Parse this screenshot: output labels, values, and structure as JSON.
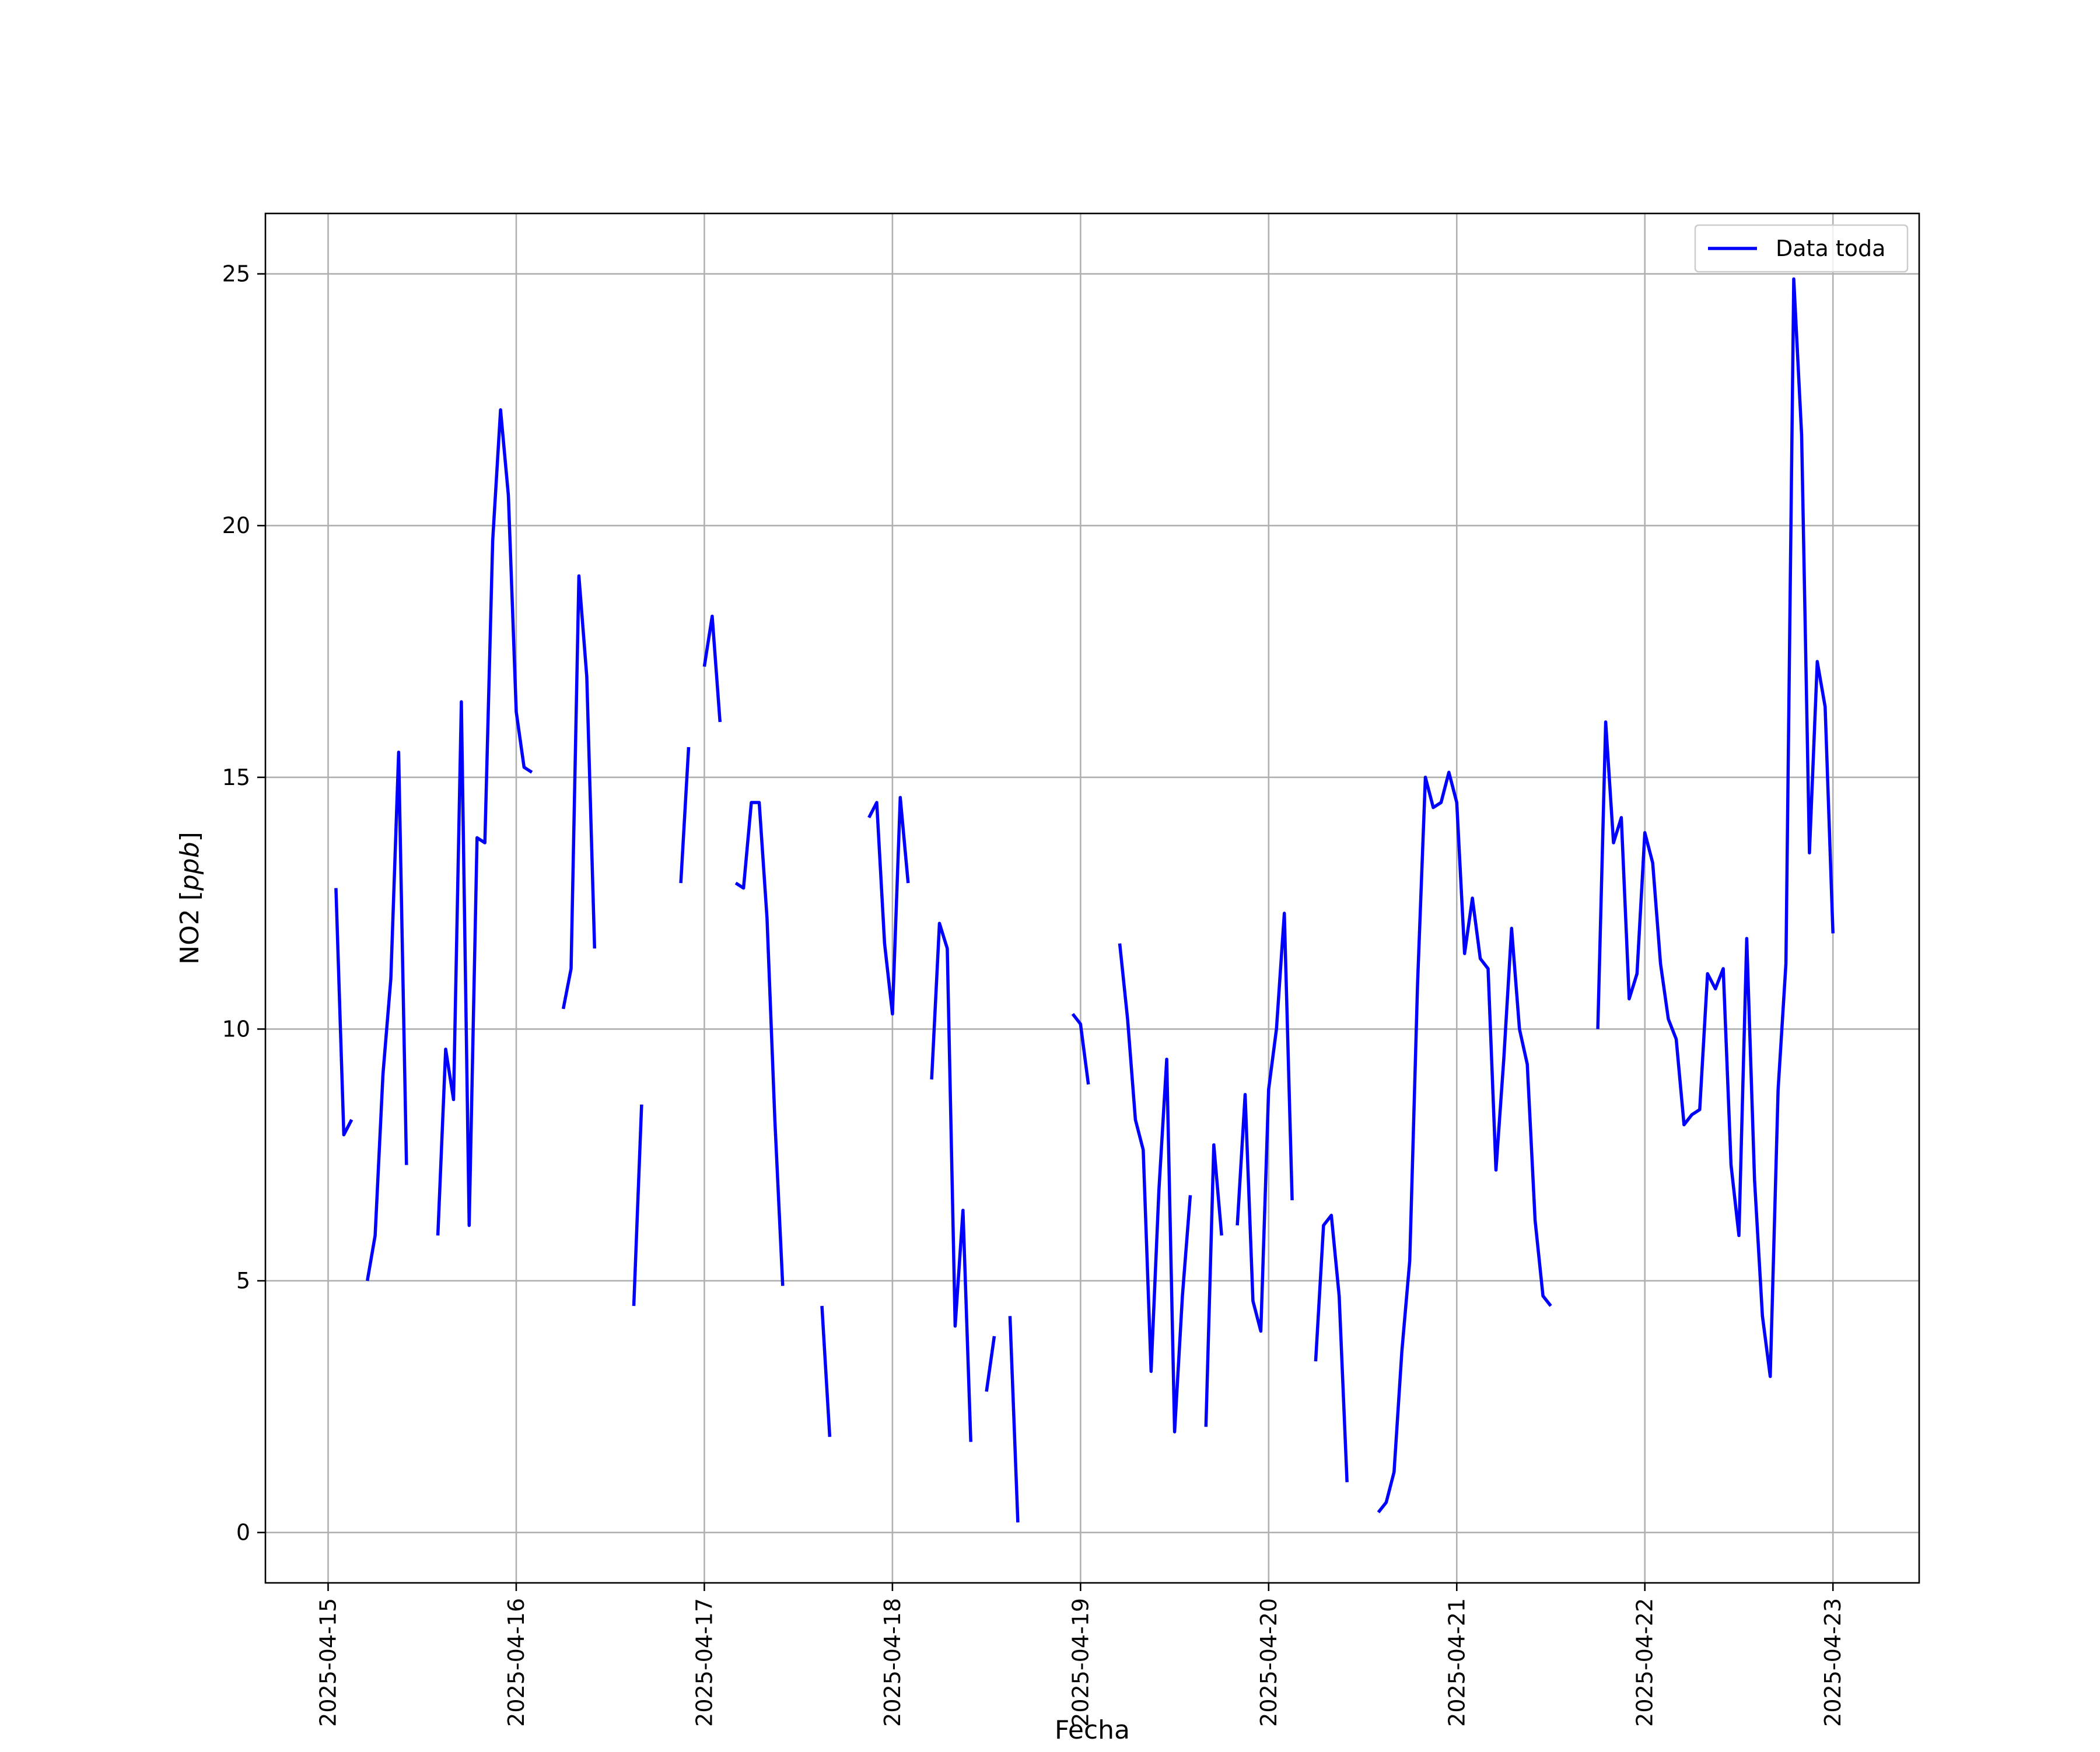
{
  "chart_data": {
    "type": "line",
    "title": "",
    "xlabel": "Fecha",
    "ylabel_prefix": "NO2 [",
    "ylabel_unit": "ppb",
    "ylabel_suffix": "]",
    "xlim": [
      "2025-04-14 16:00",
      "2025-04-23 11:00"
    ],
    "ylim": [
      -1,
      26.2
    ],
    "x_ticks": [
      "2025-04-15",
      "2025-04-16",
      "2025-04-17",
      "2025-04-18",
      "2025-04-19",
      "2025-04-20",
      "2025-04-21",
      "2025-04-22",
      "2025-04-23"
    ],
    "y_ticks": [
      0,
      5,
      10,
      15,
      20,
      25
    ],
    "grid": true,
    "legend_position": "top-right",
    "series": [
      {
        "name": "Data toda",
        "color": "#0000ff",
        "segments": [
          [
            [
              "2025-04-15 01:00",
              12.8
            ],
            [
              "2025-04-15 02:00",
              7.9
            ],
            [
              "2025-04-15 03:00",
              8.2
            ]
          ],
          [
            [
              "2025-04-15 05:00",
              5.0
            ],
            [
              "2025-04-15 06:00",
              5.9
            ],
            [
              "2025-04-15 07:00",
              9.1
            ],
            [
              "2025-04-15 08:00",
              11.0
            ],
            [
              "2025-04-15 09:00",
              15.5
            ],
            [
              "2025-04-15 10:00",
              7.3
            ]
          ],
          [
            [
              "2025-04-15 14:00",
              5.9
            ],
            [
              "2025-04-15 15:00",
              9.6
            ],
            [
              "2025-04-15 16:00",
              8.6
            ],
            [
              "2025-04-15 17:00",
              16.5
            ],
            [
              "2025-04-15 18:00",
              6.1
            ],
            [
              "2025-04-15 19:00",
              13.8
            ],
            [
              "2025-04-15 20:00",
              13.7
            ],
            [
              "2025-04-15 21:00",
              19.7
            ],
            [
              "2025-04-15 22:00",
              22.3
            ],
            [
              "2025-04-15 23:00",
              20.6
            ],
            [
              "2025-04-16 00:00",
              16.3
            ],
            [
              "2025-04-16 01:00",
              15.2
            ],
            [
              "2025-04-16 02:00",
              15.1
            ]
          ],
          [
            [
              "2025-04-16 06:00",
              10.4
            ],
            [
              "2025-04-16 07:00",
              11.2
            ],
            [
              "2025-04-16 08:00",
              19.0
            ],
            [
              "2025-04-16 09:00",
              17.0
            ],
            [
              "2025-04-16 10:00",
              11.6
            ]
          ],
          [
            [
              "2025-04-16 15:00",
              4.5
            ],
            [
              "2025-04-16 16:00",
              8.5
            ]
          ],
          [
            [
              "2025-04-16 21:00",
              12.9
            ],
            [
              "2025-04-16 22:00",
              15.6
            ]
          ],
          [
            [
              "2025-04-17 00:00",
              17.2
            ],
            [
              "2025-04-17 01:00",
              18.2
            ],
            [
              "2025-04-17 02:00",
              16.1
            ]
          ],
          [
            [
              "2025-04-17 04:00",
              12.9
            ],
            [
              "2025-04-17 05:00",
              12.8
            ],
            [
              "2025-04-17 06:00",
              14.5
            ],
            [
              "2025-04-17 07:00",
              14.5
            ],
            [
              "2025-04-17 08:00",
              12.2
            ],
            [
              "2025-04-17 09:00",
              8.2
            ],
            [
              "2025-04-17 10:00",
              4.9
            ]
          ],
          [
            [
              "2025-04-17 15:00",
              4.5
            ],
            [
              "2025-04-17 16:00",
              1.9
            ]
          ],
          [
            [
              "2025-04-17 21:00",
              14.2
            ],
            [
              "2025-04-17 22:00",
              14.5
            ],
            [
              "2025-04-17 23:00",
              11.7
            ],
            [
              "2025-04-18 00:00",
              10.3
            ],
            [
              "2025-04-18 01:00",
              14.6
            ],
            [
              "2025-04-18 02:00",
              12.9
            ]
          ],
          [
            [
              "2025-04-18 05:00",
              9.0
            ],
            [
              "2025-04-18 06:00",
              12.1
            ],
            [
              "2025-04-18 07:00",
              11.6
            ],
            [
              "2025-04-18 08:00",
              4.1
            ],
            [
              "2025-04-18 09:00",
              6.4
            ],
            [
              "2025-04-18 10:00",
              1.8
            ]
          ],
          [
            [
              "2025-04-18 12:00",
              2.8
            ],
            [
              "2025-04-18 13:00",
              3.9
            ]
          ],
          [
            [
              "2025-04-18 15:00",
              4.3
            ],
            [
              "2025-04-18 16:00",
              0.2
            ]
          ],
          [
            [
              "2025-04-18 23:00",
              10.3
            ],
            [
              "2025-04-19 00:00",
              10.1
            ],
            [
              "2025-04-19 01:00",
              8.9
            ]
          ],
          [
            [
              "2025-04-19 05:00",
              11.7
            ],
            [
              "2025-04-19 06:00",
              10.2
            ],
            [
              "2025-04-19 07:00",
              8.2
            ],
            [
              "2025-04-19 08:00",
              7.6
            ],
            [
              "2025-04-19 09:00",
              3.2
            ],
            [
              "2025-04-19 10:00",
              6.8
            ],
            [
              "2025-04-19 11:00",
              9.4
            ],
            [
              "2025-04-19 12:00",
              2.0
            ],
            [
              "2025-04-19 13:00",
              4.7
            ],
            [
              "2025-04-19 14:00",
              6.7
            ]
          ],
          [
            [
              "2025-04-19 16:00",
              2.1
            ],
            [
              "2025-04-19 17:00",
              7.7
            ],
            [
              "2025-04-19 18:00",
              5.9
            ]
          ],
          [
            [
              "2025-04-19 20:00",
              6.1
            ],
            [
              "2025-04-19 21:00",
              8.7
            ],
            [
              "2025-04-19 22:00",
              4.6
            ],
            [
              "2025-04-19 23:00",
              4.0
            ],
            [
              "2025-04-20 00:00",
              8.8
            ],
            [
              "2025-04-20 01:00",
              10.0
            ],
            [
              "2025-04-20 02:00",
              12.3
            ],
            [
              "2025-04-20 03:00",
              6.6
            ]
          ],
          [
            [
              "2025-04-20 06:00",
              3.4
            ],
            [
              "2025-04-20 07:00",
              6.1
            ],
            [
              "2025-04-20 08:00",
              6.3
            ],
            [
              "2025-04-20 09:00",
              4.7
            ],
            [
              "2025-04-20 10:00",
              1.0
            ]
          ],
          [
            [
              "2025-04-20 14:00",
              0.4
            ],
            [
              "2025-04-20 15:00",
              0.6
            ],
            [
              "2025-04-20 16:00",
              1.2
            ],
            [
              "2025-04-20 17:00",
              3.6
            ],
            [
              "2025-04-20 18:00",
              5.4
            ],
            [
              "2025-04-20 19:00",
              10.9
            ],
            [
              "2025-04-20 20:00",
              15.0
            ],
            [
              "2025-04-20 21:00",
              14.4
            ],
            [
              "2025-04-20 22:00",
              14.5
            ],
            [
              "2025-04-20 23:00",
              15.1
            ],
            [
              "2025-04-21 00:00",
              14.5
            ],
            [
              "2025-04-21 01:00",
              11.5
            ],
            [
              "2025-04-21 02:00",
              12.6
            ],
            [
              "2025-04-21 03:00",
              11.4
            ],
            [
              "2025-04-21 04:00",
              11.2
            ],
            [
              "2025-04-21 05:00",
              7.2
            ],
            [
              "2025-04-21 06:00",
              9.4
            ],
            [
              "2025-04-21 07:00",
              12.0
            ],
            [
              "2025-04-21 08:00",
              10.0
            ],
            [
              "2025-04-21 09:00",
              9.3
            ],
            [
              "2025-04-21 10:00",
              6.2
            ],
            [
              "2025-04-21 11:00",
              4.7
            ],
            [
              "2025-04-21 12:00",
              4.5
            ]
          ],
          [
            [
              "2025-04-21 18:00",
              10.0
            ],
            [
              "2025-04-21 19:00",
              16.1
            ],
            [
              "2025-04-21 20:00",
              13.7
            ],
            [
              "2025-04-21 21:00",
              14.2
            ],
            [
              "2025-04-21 22:00",
              10.6
            ],
            [
              "2025-04-21 23:00",
              11.1
            ],
            [
              "2025-04-22 00:00",
              13.9
            ],
            [
              "2025-04-22 01:00",
              13.3
            ],
            [
              "2025-04-22 02:00",
              11.3
            ],
            [
              "2025-04-22 03:00",
              10.2
            ],
            [
              "2025-04-22 04:00",
              9.8
            ],
            [
              "2025-04-22 05:00",
              8.1
            ],
            [
              "2025-04-22 06:00",
              8.3
            ],
            [
              "2025-04-22 07:00",
              8.4
            ],
            [
              "2025-04-22 08:00",
              11.1
            ],
            [
              "2025-04-22 09:00",
              10.8
            ],
            [
              "2025-04-22 10:00",
              11.2
            ],
            [
              "2025-04-22 11:00",
              7.3
            ],
            [
              "2025-04-22 12:00",
              5.9
            ],
            [
              "2025-04-22 13:00",
              11.8
            ],
            [
              "2025-04-22 14:00",
              7.0
            ],
            [
              "2025-04-22 15:00",
              4.3
            ],
            [
              "2025-04-22 16:00",
              3.1
            ],
            [
              "2025-04-22 17:00",
              8.8
            ],
            [
              "2025-04-22 18:00",
              11.3
            ],
            [
              "2025-04-22 19:00",
              24.9
            ],
            [
              "2025-04-22 20:00",
              21.8
            ],
            [
              "2025-04-22 21:00",
              13.5
            ],
            [
              "2025-04-22 22:00",
              17.3
            ],
            [
              "2025-04-22 23:00",
              16.4
            ],
            [
              "2025-04-23 00:00",
              11.9
            ]
          ]
        ]
      }
    ]
  }
}
